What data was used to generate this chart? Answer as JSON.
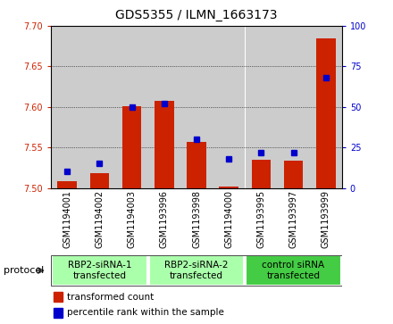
{
  "title": "GDS5355 / ILMN_1663173",
  "samples": [
    "GSM1194001",
    "GSM1194002",
    "GSM1194003",
    "GSM1193996",
    "GSM1193998",
    "GSM1194000",
    "GSM1193995",
    "GSM1193997",
    "GSM1193999"
  ],
  "red_values": [
    7.508,
    7.518,
    7.601,
    7.607,
    7.557,
    7.502,
    7.535,
    7.534,
    7.685
  ],
  "blue_values": [
    10,
    15,
    50,
    52,
    30,
    18,
    22,
    22,
    68
  ],
  "ylim_left": [
    7.5,
    7.7
  ],
  "ylim_right": [
    0,
    100
  ],
  "yticks_left": [
    7.5,
    7.55,
    7.6,
    7.65,
    7.7
  ],
  "yticks_right": [
    0,
    25,
    50,
    75,
    100
  ],
  "groups": [
    {
      "label": "RBP2-siRNA-1\ntransfected",
      "start": 0,
      "end": 3,
      "color": "#aaffaa"
    },
    {
      "label": "RBP2-siRNA-2\ntransfected",
      "start": 3,
      "end": 6,
      "color": "#aaffaa"
    },
    {
      "label": "control siRNA\ntransfected",
      "start": 6,
      "end": 9,
      "color": "#44cc44"
    }
  ],
  "bar_color": "#cc2200",
  "dot_color": "#0000cc",
  "col_bg_color": "#cccccc",
  "protocol_label": "protocol",
  "legend_red": "transformed count",
  "legend_blue": "percentile rank within the sample",
  "bar_width": 0.6,
  "title_fontsize": 10,
  "tick_fontsize": 7,
  "label_fontsize": 8
}
